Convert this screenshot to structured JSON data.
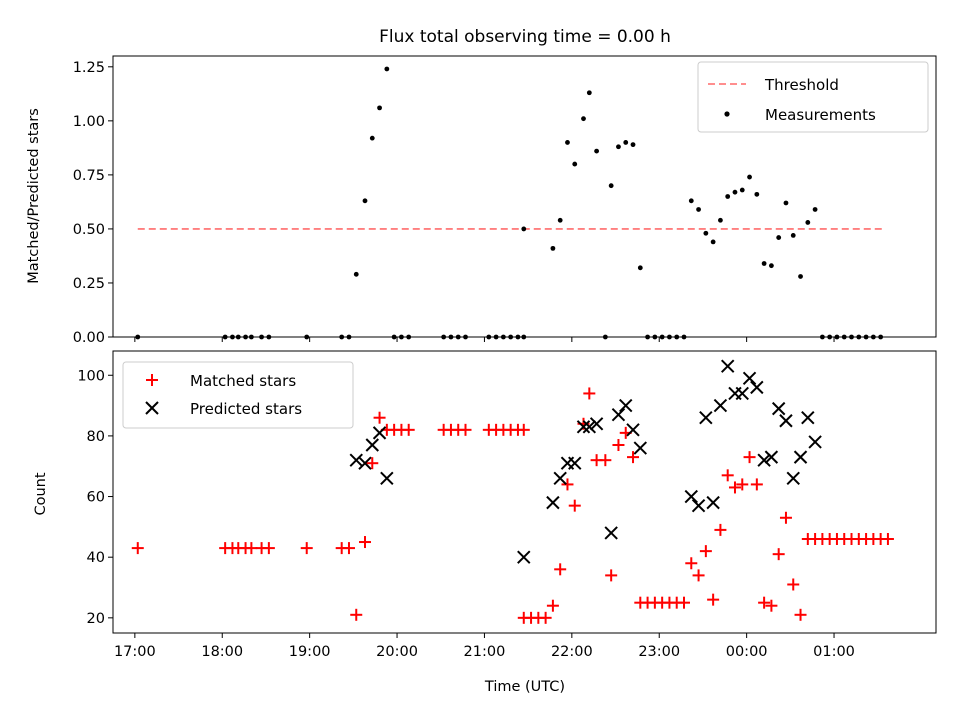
{
  "chart_data": [
    {
      "type": "scatter",
      "title": "Flux total observing time = 0.00 h",
      "ylabel": "Matched/Predicted stars",
      "xlabel": "",
      "ylim": [
        0,
        1.3
      ],
      "yticks": [
        0,
        0.25,
        0.5,
        0.75,
        1.0,
        1.25
      ],
      "ytick_labels": [
        "0.00",
        "0.25",
        "0.50",
        "0.75",
        "1.00",
        "1.25"
      ],
      "legend": {
        "placement": "top-right",
        "threshold_label": "Threshold",
        "measurements_label": "Measurements"
      },
      "threshold": {
        "value": 0.5,
        "x_start": "17:02",
        "x_end": "01:35",
        "color": "#ff7f7f"
      },
      "measurements": {
        "color": "#000000",
        "points": [
          [
            "17:02",
            0
          ],
          [
            "18:02",
            0
          ],
          [
            "18:07",
            0
          ],
          [
            "18:11",
            0
          ],
          [
            "18:16",
            0
          ],
          [
            "18:20",
            0
          ],
          [
            "18:27",
            0
          ],
          [
            "18:32",
            0
          ],
          [
            "18:58",
            0
          ],
          [
            "19:22",
            0
          ],
          [
            "19:27",
            0
          ],
          [
            "19:32",
            0.29
          ],
          [
            "19:38",
            0.63
          ],
          [
            "19:43",
            0.92
          ],
          [
            "19:48",
            1.06
          ],
          [
            "19:53",
            1.24
          ],
          [
            "19:58",
            0
          ],
          [
            "20:03",
            0
          ],
          [
            "20:08",
            0
          ],
          [
            "20:32",
            0
          ],
          [
            "20:37",
            0
          ],
          [
            "20:42",
            0
          ],
          [
            "20:47",
            0
          ],
          [
            "21:03",
            0
          ],
          [
            "21:08",
            0
          ],
          [
            "21:13",
            0
          ],
          [
            "21:18",
            0
          ],
          [
            "21:23",
            0
          ],
          [
            "21:27",
            0
          ],
          [
            "21:27",
            0.5
          ],
          [
            "21:47",
            0.41
          ],
          [
            "21:52",
            0.54
          ],
          [
            "21:57",
            0.9
          ],
          [
            "22:02",
            0.8
          ],
          [
            "22:08",
            1.01
          ],
          [
            "22:12",
            1.13
          ],
          [
            "22:17",
            0.86
          ],
          [
            "22:23",
            0
          ],
          [
            "22:27",
            0.7
          ],
          [
            "22:32",
            0.88
          ],
          [
            "22:37",
            0.9
          ],
          [
            "22:42",
            0.89
          ],
          [
            "22:47",
            0.32
          ],
          [
            "22:52",
            0
          ],
          [
            "22:57",
            0
          ],
          [
            "23:02",
            0
          ],
          [
            "23:07",
            0
          ],
          [
            "23:12",
            0
          ],
          [
            "23:17",
            0
          ],
          [
            "23:22",
            0.63
          ],
          [
            "23:27",
            0.59
          ],
          [
            "23:32",
            0.48
          ],
          [
            "23:37",
            0.44
          ],
          [
            "23:42",
            0.54
          ],
          [
            "23:47",
            0.65
          ],
          [
            "23:52",
            0.67
          ],
          [
            "23:57",
            0.68
          ],
          [
            "00:02",
            0.74
          ],
          [
            "00:07",
            0.66
          ],
          [
            "00:12",
            0.34
          ],
          [
            "00:17",
            0.33
          ],
          [
            "00:22",
            0.46
          ],
          [
            "00:27",
            0.62
          ],
          [
            "00:32",
            0.47
          ],
          [
            "00:37",
            0.28
          ],
          [
            "00:42",
            0.53
          ],
          [
            "00:47",
            0.59
          ],
          [
            "00:52",
            0
          ],
          [
            "00:57",
            0
          ],
          [
            "01:02",
            0
          ],
          [
            "01:07",
            0
          ],
          [
            "01:12",
            0
          ],
          [
            "01:17",
            0
          ],
          [
            "01:22",
            0
          ],
          [
            "01:27",
            0
          ],
          [
            "01:32",
            0
          ]
        ]
      }
    },
    {
      "type": "scatter",
      "ylabel": "Count",
      "xlabel": "Time (UTC)",
      "ylim": [
        15,
        108
      ],
      "yticks": [
        20,
        40,
        60,
        80,
        100
      ],
      "ytick_labels": [
        "20",
        "40",
        "60",
        "80",
        "100"
      ],
      "xticks": [
        "17:00",
        "18:00",
        "19:00",
        "20:00",
        "21:00",
        "22:00",
        "23:00",
        "00:00",
        "01:00"
      ],
      "xlim": [
        "16:45",
        "02:10"
      ],
      "legend": {
        "placement": "top-left"
      },
      "series": [
        {
          "name": "Matched stars",
          "marker": "+",
          "color": "#ff0000",
          "points": [
            [
              "17:02",
              43
            ],
            [
              "18:02",
              43
            ],
            [
              "18:07",
              43
            ],
            [
              "18:11",
              43
            ],
            [
              "18:16",
              43
            ],
            [
              "18:20",
              43
            ],
            [
              "18:27",
              43
            ],
            [
              "18:32",
              43
            ],
            [
              "18:58",
              43
            ],
            [
              "19:22",
              43
            ],
            [
              "19:27",
              43
            ],
            [
              "19:32",
              21
            ],
            [
              "19:38",
              45
            ],
            [
              "19:43",
              71
            ],
            [
              "19:48",
              86
            ],
            [
              "19:53",
              82
            ],
            [
              "19:58",
              82
            ],
            [
              "20:03",
              82
            ],
            [
              "20:08",
              82
            ],
            [
              "20:32",
              82
            ],
            [
              "20:37",
              82
            ],
            [
              "20:42",
              82
            ],
            [
              "20:47",
              82
            ],
            [
              "21:03",
              82
            ],
            [
              "21:08",
              82
            ],
            [
              "21:13",
              82
            ],
            [
              "21:18",
              82
            ],
            [
              "21:23",
              82
            ],
            [
              "21:27",
              82
            ],
            [
              "21:27",
              20
            ],
            [
              "21:32",
              20
            ],
            [
              "21:37",
              20
            ],
            [
              "21:42",
              20
            ],
            [
              "21:47",
              24
            ],
            [
              "21:52",
              36
            ],
            [
              "21:57",
              64
            ],
            [
              "22:02",
              57
            ],
            [
              "22:08",
              84
            ],
            [
              "22:12",
              94
            ],
            [
              "22:17",
              72
            ],
            [
              "22:23",
              72
            ],
            [
              "22:27",
              34
            ],
            [
              "22:32",
              77
            ],
            [
              "22:37",
              81
            ],
            [
              "22:42",
              73
            ],
            [
              "22:47",
              25
            ],
            [
              "22:52",
              25
            ],
            [
              "22:57",
              25
            ],
            [
              "23:02",
              25
            ],
            [
              "23:07",
              25
            ],
            [
              "23:12",
              25
            ],
            [
              "23:17",
              25
            ],
            [
              "23:22",
              38
            ],
            [
              "23:27",
              34
            ],
            [
              "23:32",
              42
            ],
            [
              "23:37",
              26
            ],
            [
              "23:42",
              49
            ],
            [
              "23:47",
              67
            ],
            [
              "23:52",
              63
            ],
            [
              "23:57",
              64
            ],
            [
              "00:02",
              73
            ],
            [
              "00:07",
              64
            ],
            [
              "00:12",
              25
            ],
            [
              "00:17",
              24
            ],
            [
              "00:22",
              41
            ],
            [
              "00:27",
              53
            ],
            [
              "00:32",
              31
            ],
            [
              "00:37",
              21
            ],
            [
              "00:42",
              46
            ],
            [
              "00:47",
              46
            ],
            [
              "00:52",
              46
            ],
            [
              "00:57",
              46
            ],
            [
              "01:02",
              46
            ],
            [
              "01:07",
              46
            ],
            [
              "01:12",
              46
            ],
            [
              "01:17",
              46
            ],
            [
              "01:22",
              46
            ],
            [
              "01:27",
              46
            ],
            [
              "01:32",
              46
            ],
            [
              "01:37",
              46
            ]
          ]
        },
        {
          "name": "Predicted stars",
          "marker": "x",
          "color": "#000000",
          "points": [
            [
              "19:32",
              72
            ],
            [
              "19:38",
              71
            ],
            [
              "19:43",
              77
            ],
            [
              "19:48",
              81
            ],
            [
              "19:53",
              66
            ],
            [
              "21:27",
              40
            ],
            [
              "21:47",
              58
            ],
            [
              "21:52",
              66
            ],
            [
              "21:57",
              71
            ],
            [
              "22:02",
              71
            ],
            [
              "22:08",
              83
            ],
            [
              "22:12",
              83
            ],
            [
              "22:17",
              84
            ],
            [
              "22:27",
              48
            ],
            [
              "22:32",
              87
            ],
            [
              "22:37",
              90
            ],
            [
              "22:42",
              82
            ],
            [
              "22:47",
              76
            ],
            [
              "23:22",
              60
            ],
            [
              "23:27",
              57
            ],
            [
              "23:32",
              86
            ],
            [
              "23:37",
              58
            ],
            [
              "23:42",
              90
            ],
            [
              "23:47",
              103
            ],
            [
              "23:52",
              94
            ],
            [
              "23:57",
              94
            ],
            [
              "00:02",
              99
            ],
            [
              "00:07",
              96
            ],
            [
              "00:12",
              72
            ],
            [
              "00:17",
              73
            ],
            [
              "00:22",
              89
            ],
            [
              "00:27",
              85
            ],
            [
              "00:32",
              66
            ],
            [
              "00:37",
              73
            ],
            [
              "00:42",
              86
            ],
            [
              "00:47",
              78
            ]
          ]
        }
      ]
    }
  ]
}
